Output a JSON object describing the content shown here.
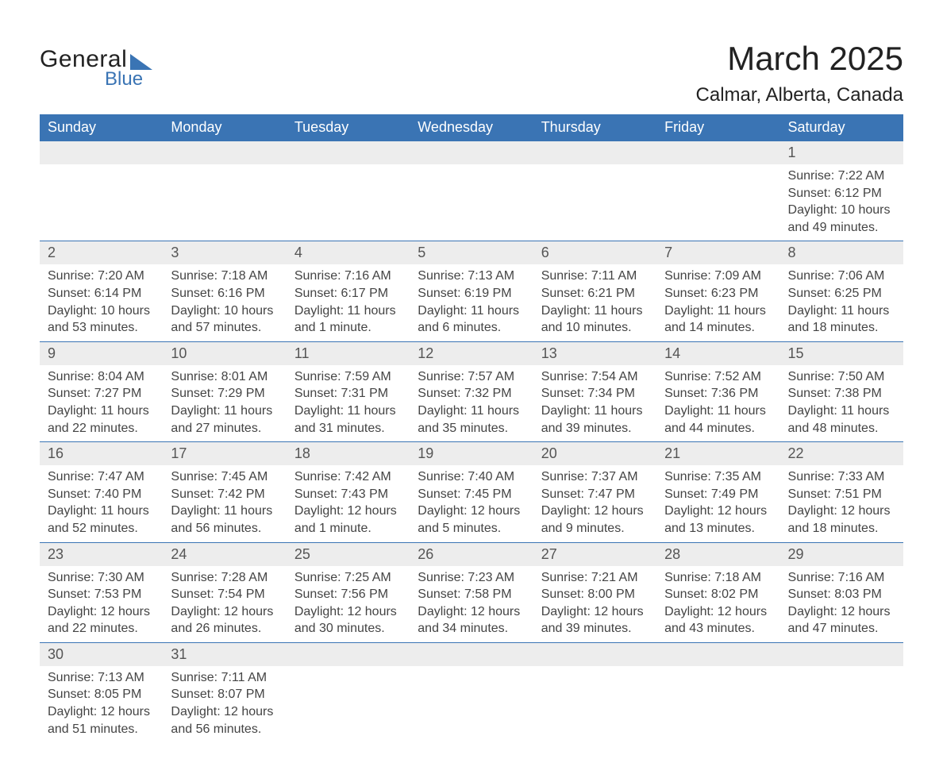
{
  "brand": {
    "line1": "General",
    "line2": "Blue",
    "accent_color": "#3a74b4"
  },
  "title": "March 2025",
  "location": "Calmar, Alberta, Canada",
  "calendar": {
    "header_bg": "#3a74b4",
    "header_fg": "#ffffff",
    "daynum_bg": "#ededed",
    "border_color": "#3a74b4",
    "body_fontsize": 16,
    "columns": [
      "Sunday",
      "Monday",
      "Tuesday",
      "Wednesday",
      "Thursday",
      "Friday",
      "Saturday"
    ],
    "weeks": [
      [
        null,
        null,
        null,
        null,
        null,
        null,
        {
          "n": "1",
          "sunrise": "7:22 AM",
          "sunset": "6:12 PM",
          "daylight": "10 hours and 49 minutes."
        }
      ],
      [
        {
          "n": "2",
          "sunrise": "7:20 AM",
          "sunset": "6:14 PM",
          "daylight": "10 hours and 53 minutes."
        },
        {
          "n": "3",
          "sunrise": "7:18 AM",
          "sunset": "6:16 PM",
          "daylight": "10 hours and 57 minutes."
        },
        {
          "n": "4",
          "sunrise": "7:16 AM",
          "sunset": "6:17 PM",
          "daylight": "11 hours and 1 minute."
        },
        {
          "n": "5",
          "sunrise": "7:13 AM",
          "sunset": "6:19 PM",
          "daylight": "11 hours and 6 minutes."
        },
        {
          "n": "6",
          "sunrise": "7:11 AM",
          "sunset": "6:21 PM",
          "daylight": "11 hours and 10 minutes."
        },
        {
          "n": "7",
          "sunrise": "7:09 AM",
          "sunset": "6:23 PM",
          "daylight": "11 hours and 14 minutes."
        },
        {
          "n": "8",
          "sunrise": "7:06 AM",
          "sunset": "6:25 PM",
          "daylight": "11 hours and 18 minutes."
        }
      ],
      [
        {
          "n": "9",
          "sunrise": "8:04 AM",
          "sunset": "7:27 PM",
          "daylight": "11 hours and 22 minutes."
        },
        {
          "n": "10",
          "sunrise": "8:01 AM",
          "sunset": "7:29 PM",
          "daylight": "11 hours and 27 minutes."
        },
        {
          "n": "11",
          "sunrise": "7:59 AM",
          "sunset": "7:31 PM",
          "daylight": "11 hours and 31 minutes."
        },
        {
          "n": "12",
          "sunrise": "7:57 AM",
          "sunset": "7:32 PM",
          "daylight": "11 hours and 35 minutes."
        },
        {
          "n": "13",
          "sunrise": "7:54 AM",
          "sunset": "7:34 PM",
          "daylight": "11 hours and 39 minutes."
        },
        {
          "n": "14",
          "sunrise": "7:52 AM",
          "sunset": "7:36 PM",
          "daylight": "11 hours and 44 minutes."
        },
        {
          "n": "15",
          "sunrise": "7:50 AM",
          "sunset": "7:38 PM",
          "daylight": "11 hours and 48 minutes."
        }
      ],
      [
        {
          "n": "16",
          "sunrise": "7:47 AM",
          "sunset": "7:40 PM",
          "daylight": "11 hours and 52 minutes."
        },
        {
          "n": "17",
          "sunrise": "7:45 AM",
          "sunset": "7:42 PM",
          "daylight": "11 hours and 56 minutes."
        },
        {
          "n": "18",
          "sunrise": "7:42 AM",
          "sunset": "7:43 PM",
          "daylight": "12 hours and 1 minute."
        },
        {
          "n": "19",
          "sunrise": "7:40 AM",
          "sunset": "7:45 PM",
          "daylight": "12 hours and 5 minutes."
        },
        {
          "n": "20",
          "sunrise": "7:37 AM",
          "sunset": "7:47 PM",
          "daylight": "12 hours and 9 minutes."
        },
        {
          "n": "21",
          "sunrise": "7:35 AM",
          "sunset": "7:49 PM",
          "daylight": "12 hours and 13 minutes."
        },
        {
          "n": "22",
          "sunrise": "7:33 AM",
          "sunset": "7:51 PM",
          "daylight": "12 hours and 18 minutes."
        }
      ],
      [
        {
          "n": "23",
          "sunrise": "7:30 AM",
          "sunset": "7:53 PM",
          "daylight": "12 hours and 22 minutes."
        },
        {
          "n": "24",
          "sunrise": "7:28 AM",
          "sunset": "7:54 PM",
          "daylight": "12 hours and 26 minutes."
        },
        {
          "n": "25",
          "sunrise": "7:25 AM",
          "sunset": "7:56 PM",
          "daylight": "12 hours and 30 minutes."
        },
        {
          "n": "26",
          "sunrise": "7:23 AM",
          "sunset": "7:58 PM",
          "daylight": "12 hours and 34 minutes."
        },
        {
          "n": "27",
          "sunrise": "7:21 AM",
          "sunset": "8:00 PM",
          "daylight": "12 hours and 39 minutes."
        },
        {
          "n": "28",
          "sunrise": "7:18 AM",
          "sunset": "8:02 PM",
          "daylight": "12 hours and 43 minutes."
        },
        {
          "n": "29",
          "sunrise": "7:16 AM",
          "sunset": "8:03 PM",
          "daylight": "12 hours and 47 minutes."
        }
      ],
      [
        {
          "n": "30",
          "sunrise": "7:13 AM",
          "sunset": "8:05 PM",
          "daylight": "12 hours and 51 minutes."
        },
        {
          "n": "31",
          "sunrise": "7:11 AM",
          "sunset": "8:07 PM",
          "daylight": "12 hours and 56 minutes."
        },
        null,
        null,
        null,
        null,
        null
      ]
    ],
    "labels": {
      "sunrise": "Sunrise: ",
      "sunset": "Sunset: ",
      "daylight": "Daylight: "
    }
  }
}
